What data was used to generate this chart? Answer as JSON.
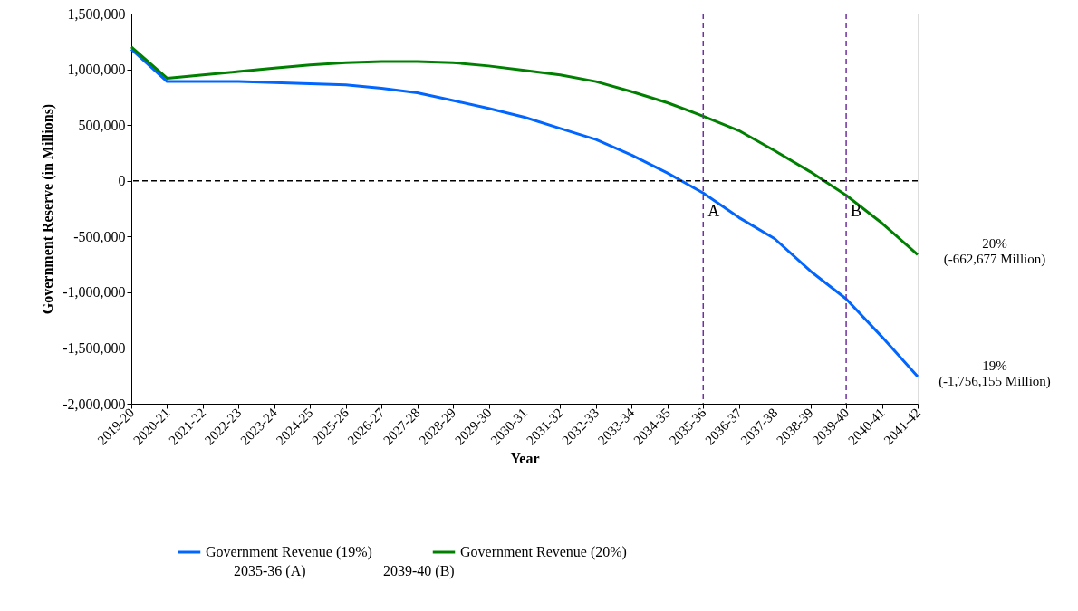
{
  "chart_data": {
    "type": "line",
    "xlabel": "Year",
    "ylabel": "Government Reserve (in Millions)",
    "categories": [
      "2019-20",
      "2020-21",
      "2021-22",
      "2022-23",
      "2023-24",
      "2024-25",
      "2025-26",
      "2026-27",
      "2027-28",
      "2028-29",
      "2029-30",
      "2030-31",
      "2031-32",
      "2032-33",
      "2033-34",
      "2034-35",
      "2035-36",
      "2036-37",
      "2037-38",
      "2038-39",
      "2039-40",
      "2040-41",
      "2041-42"
    ],
    "series": [
      {
        "name": "Government Revenue (19%)",
        "color": "#0066ff",
        "values": [
          1180000,
          890000,
          890000,
          890000,
          880000,
          870000,
          860000,
          830000,
          790000,
          720000,
          650000,
          570000,
          470000,
          370000,
          230000,
          70000,
          -110000,
          -330000,
          -520000,
          -810000,
          -1060000,
          -1400000,
          -1756155
        ]
      },
      {
        "name": "Government Revenue (20%)",
        "color": "#008000",
        "values": [
          1200000,
          920000,
          950000,
          980000,
          1010000,
          1040000,
          1060000,
          1070000,
          1070000,
          1060000,
          1030000,
          990000,
          950000,
          890000,
          800000,
          700000,
          580000,
          450000,
          270000,
          80000,
          -130000,
          -380000,
          -662677
        ]
      }
    ],
    "ylim": [
      -2000000,
      1500000
    ],
    "yticks": [
      {
        "value": -2000000,
        "label": "-2,000,000"
      },
      {
        "value": -1500000,
        "label": "-1,500,000"
      },
      {
        "value": -1000000,
        "label": "-1,000,000"
      },
      {
        "value": -500000,
        "label": "-500,000"
      },
      0,
      {
        "value": 500000,
        "label": "500,000"
      },
      {
        "value": 1000000,
        "label": "1,000,000"
      },
      {
        "value": 1500000,
        "label": "1,500,000"
      }
    ],
    "ref_lines": [
      {
        "axis": "y",
        "value": 0,
        "color": "#000000",
        "line_style": "dashed"
      },
      {
        "axis": "x",
        "value": "2035-36",
        "label": "A",
        "color": "#7030a0",
        "line_style": "dashed"
      },
      {
        "axis": "x",
        "value": "2039-40",
        "label": "B",
        "color": "#7030a0",
        "line_style": "dashed"
      }
    ],
    "annotations": [
      {
        "text": "20%\n(-662,677 Million)",
        "x": "2041-42",
        "y": -662677
      },
      {
        "text": "19%\n(-1,756,155 Million)",
        "x": "2041-42",
        "y": -1756155
      },
      "2035-36 (A)",
      "2039-40 (B)"
    ],
    "legend": "bottom",
    "grid": false,
    "marker": "none",
    "line_style": "solid"
  }
}
